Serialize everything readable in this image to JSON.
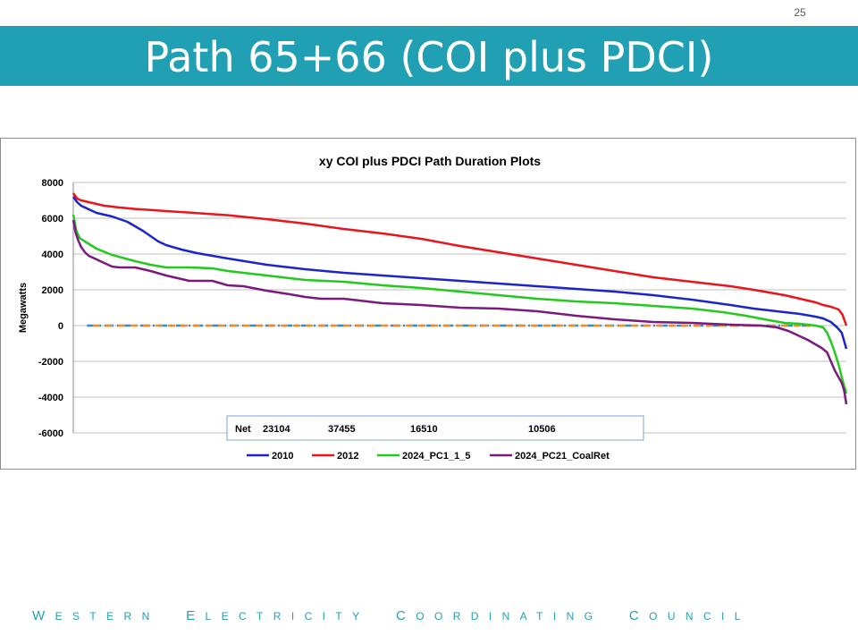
{
  "slide": {
    "page_number": "25",
    "title": "Path 65+66 (COI plus PDCI)",
    "footer": "Western Electricity Coordinating Council",
    "accent_color": "#21A0B3"
  },
  "chart_data": {
    "type": "line",
    "title": "xy COI plus PDCI Path Duration Plots",
    "xlabel": "",
    "ylabel": "Megawatts",
    "ylim": [
      -6000,
      8000
    ],
    "yticks": [
      8000,
      6000,
      4000,
      2000,
      0,
      -2000,
      -4000,
      -6000
    ],
    "ytick_labels": [
      "8000",
      "6000",
      "4000",
      "2000",
      "0",
      "-2000",
      "-4000",
      "-6000"
    ],
    "xlim": [
      0,
      100
    ],
    "grid": true,
    "legend_position": "bottom",
    "net_label": "Net",
    "net_values": [
      "23104",
      "37455",
      "16510",
      "10506"
    ],
    "series": [
      {
        "name": "2010",
        "color": "#1C25C9",
        "x": [
          0,
          0.5,
          1,
          2,
          3,
          4,
          5,
          6,
          7,
          8,
          9,
          10,
          11,
          12,
          14,
          16,
          18,
          20,
          25,
          30,
          35,
          40,
          45,
          50,
          55,
          60,
          65,
          70,
          75,
          80,
          85,
          88,
          90,
          92,
          94,
          96,
          97,
          98,
          98.8,
          99.4,
          100
        ],
        "y": [
          7200,
          6900,
          6700,
          6500,
          6300,
          6200,
          6100,
          5950,
          5800,
          5550,
          5300,
          5000,
          4700,
          4500,
          4250,
          4050,
          3900,
          3750,
          3400,
          3150,
          2950,
          2800,
          2650,
          2500,
          2350,
          2200,
          2050,
          1900,
          1700,
          1450,
          1150,
          950,
          850,
          750,
          650,
          500,
          400,
          200,
          -100,
          -400,
          -1300
        ]
      },
      {
        "name": "2012",
        "color": "#E8151B",
        "x": [
          0,
          0.5,
          1,
          2,
          4,
          6,
          8,
          10,
          12,
          15,
          20,
          25,
          30,
          35,
          40,
          45,
          50,
          55,
          60,
          65,
          70,
          75,
          80,
          85,
          88,
          90,
          92,
          94,
          96,
          97,
          98,
          99,
          99.5,
          100
        ],
        "y": [
          7400,
          7100,
          7000,
          6900,
          6700,
          6600,
          6520,
          6460,
          6400,
          6320,
          6170,
          5950,
          5700,
          5400,
          5150,
          4850,
          4450,
          4100,
          3750,
          3400,
          3050,
          2700,
          2450,
          2200,
          2000,
          1850,
          1700,
          1500,
          1300,
          1150,
          1050,
          900,
          600,
          0
        ]
      },
      {
        "name": "2024_PC1_1_5",
        "color": "#24C91E",
        "x": [
          0,
          0.4,
          0.8,
          1.5,
          3,
          5,
          8,
          10,
          12,
          15,
          18,
          20,
          25,
          30,
          35,
          40,
          45,
          50,
          55,
          60,
          65,
          70,
          75,
          80,
          84,
          87,
          90,
          92,
          94,
          95,
          96,
          97,
          97.5,
          98,
          98.5,
          99,
          99.3,
          99.6,
          100
        ],
        "y": [
          6200,
          5300,
          4900,
          4700,
          4300,
          3950,
          3600,
          3400,
          3250,
          3250,
          3200,
          3050,
          2800,
          2550,
          2450,
          2250,
          2100,
          1900,
          1700,
          1500,
          1350,
          1250,
          1100,
          950,
          750,
          550,
          300,
          150,
          100,
          50,
          0,
          -100,
          -400,
          -900,
          -1500,
          -2200,
          -2700,
          -3200,
          -3800
        ]
      },
      {
        "name": "2024_PC21_CoalRet",
        "color": "#7B1A7D",
        "x": [
          0,
          0.3,
          0.6,
          1,
          1.5,
          2,
          3,
          4,
          5,
          6,
          8,
          10,
          12,
          15,
          18,
          20,
          22,
          25,
          28,
          30,
          32,
          35,
          40,
          45,
          50,
          55,
          60,
          65,
          70,
          75,
          80,
          85,
          89,
          91,
          92.5,
          94,
          95,
          96,
          96.8,
          97.5,
          98,
          98.5,
          99,
          99.4,
          99.7,
          100
        ],
        "y": [
          5900,
          5200,
          4800,
          4400,
          4100,
          3900,
          3700,
          3500,
          3300,
          3250,
          3250,
          3050,
          2800,
          2500,
          2500,
          2250,
          2200,
          1950,
          1750,
          1600,
          1500,
          1500,
          1250,
          1150,
          1000,
          950,
          800,
          550,
          350,
          200,
          150,
          50,
          0,
          -100,
          -300,
          -600,
          -800,
          -1050,
          -1250,
          -1500,
          -2000,
          -2500,
          -2900,
          -3200,
          -3600,
          -4400
        ]
      }
    ],
    "reference_lines": [
      {
        "y": 0,
        "color": "#2E8FD0",
        "style": "dash-dot"
      },
      {
        "y": 0,
        "color": "#F08C2A",
        "style": "dash"
      }
    ]
  }
}
